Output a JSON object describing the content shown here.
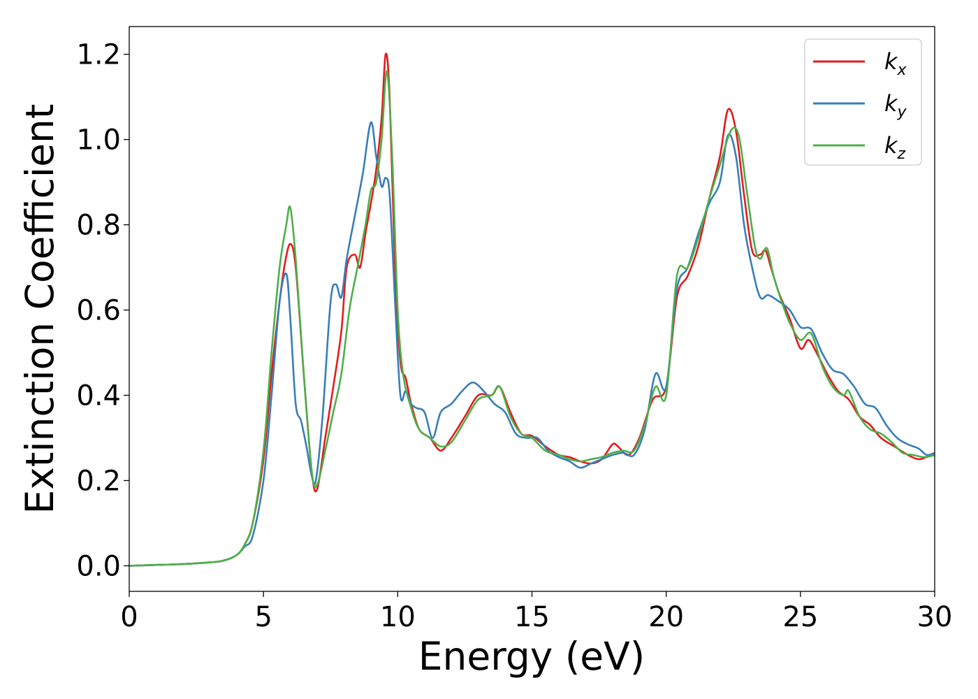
{
  "chart_data": {
    "type": "line",
    "title": "",
    "xlabel": "Energy (eV)",
    "ylabel": "Extinction Coefficient",
    "xlim": [
      0,
      30
    ],
    "ylim": [
      -0.06,
      1.265
    ],
    "xticks": [
      0,
      5,
      10,
      15,
      20,
      25,
      30
    ],
    "xtick_labels": [
      "0",
      "5",
      "10",
      "15",
      "20",
      "25",
      "30"
    ],
    "yticks": [
      0.0,
      0.2,
      0.4,
      0.6,
      0.8,
      1.0,
      1.2
    ],
    "ytick_labels": [
      "0.0",
      "0.2",
      "0.4",
      "0.6",
      "0.8",
      "1.0",
      "1.2"
    ],
    "grid": false,
    "legend_position": "top-right",
    "series": [
      {
        "name": "k_x",
        "label_main": "k",
        "label_sub": "x",
        "color": "#e41a1c",
        "x": [
          0,
          1,
          2,
          3,
          3.5,
          4,
          4.3,
          4.6,
          5,
          5.3,
          5.6,
          5.8,
          6.0,
          6.2,
          6.5,
          6.8,
          7.0,
          7.3,
          7.6,
          7.9,
          8.1,
          8.4,
          8.6,
          8.8,
          9.0,
          9.2,
          9.4,
          9.55,
          9.7,
          9.9,
          10.1,
          10.3,
          10.5,
          10.8,
          11.2,
          11.6,
          12.0,
          12.5,
          13.0,
          13.5,
          13.8,
          14.2,
          14.6,
          15.0,
          15.5,
          16.0,
          16.4,
          16.8,
          17.2,
          17.6,
          18.0,
          18.2,
          18.6,
          19.0,
          19.5,
          20.0,
          20.4,
          20.8,
          21.2,
          21.6,
          22.0,
          22.3,
          22.6,
          22.9,
          23.2,
          23.5,
          23.7,
          23.9,
          24.2,
          24.6,
          25.0,
          25.3,
          25.6,
          26.0,
          26.4,
          26.8,
          27.2,
          27.6,
          28.0,
          28.5,
          29.0,
          29.4,
          29.7,
          30.0
        ],
        "y": [
          0.0,
          0.002,
          0.004,
          0.008,
          0.012,
          0.025,
          0.05,
          0.1,
          0.25,
          0.45,
          0.62,
          0.71,
          0.755,
          0.7,
          0.45,
          0.22,
          0.18,
          0.3,
          0.42,
          0.55,
          0.7,
          0.73,
          0.7,
          0.78,
          0.85,
          0.93,
          1.05,
          1.2,
          1.1,
          0.7,
          0.48,
          0.44,
          0.38,
          0.32,
          0.3,
          0.27,
          0.3,
          0.35,
          0.4,
          0.4,
          0.42,
          0.36,
          0.31,
          0.305,
          0.28,
          0.26,
          0.255,
          0.245,
          0.24,
          0.25,
          0.285,
          0.28,
          0.26,
          0.3,
          0.39,
          0.42,
          0.63,
          0.68,
          0.75,
          0.86,
          0.96,
          1.07,
          1.02,
          0.87,
          0.74,
          0.73,
          0.74,
          0.7,
          0.64,
          0.58,
          0.51,
          0.53,
          0.5,
          0.45,
          0.41,
          0.39,
          0.35,
          0.33,
          0.3,
          0.28,
          0.26,
          0.25,
          0.255,
          0.26
        ]
      },
      {
        "name": "k_y",
        "label_main": "k",
        "label_sub": "y",
        "color": "#377eb8",
        "x": [
          0,
          1,
          2,
          3,
          3.5,
          4,
          4.3,
          4.6,
          5,
          5.3,
          5.6,
          5.85,
          6.0,
          6.2,
          6.4,
          6.6,
          6.8,
          6.95,
          7.2,
          7.5,
          7.7,
          7.9,
          8.1,
          8.4,
          8.7,
          9.0,
          9.2,
          9.4,
          9.55,
          9.7,
          9.9,
          10.1,
          10.3,
          10.5,
          10.7,
          11.0,
          11.3,
          11.6,
          12.0,
          12.4,
          12.8,
          13.2,
          13.6,
          14.0,
          14.4,
          14.8,
          15.2,
          15.6,
          16.0,
          16.4,
          16.8,
          17.2,
          17.6,
          18.0,
          18.4,
          18.8,
          19.2,
          19.6,
          20.0,
          20.4,
          20.8,
          21.2,
          21.6,
          22.0,
          22.3,
          22.6,
          22.9,
          23.2,
          23.5,
          23.8,
          24.2,
          24.6,
          25.0,
          25.4,
          25.8,
          26.2,
          26.6,
          27.0,
          27.4,
          27.8,
          28.2,
          28.6,
          29.0,
          29.4,
          29.7,
          30.0
        ],
        "y": [
          0.0,
          0.002,
          0.004,
          0.008,
          0.012,
          0.025,
          0.045,
          0.07,
          0.2,
          0.4,
          0.62,
          0.685,
          0.58,
          0.38,
          0.34,
          0.28,
          0.21,
          0.2,
          0.35,
          0.62,
          0.66,
          0.63,
          0.72,
          0.82,
          0.92,
          1.04,
          0.96,
          0.89,
          0.91,
          0.87,
          0.62,
          0.4,
          0.41,
          0.38,
          0.37,
          0.36,
          0.3,
          0.36,
          0.38,
          0.41,
          0.43,
          0.41,
          0.38,
          0.36,
          0.31,
          0.3,
          0.3,
          0.27,
          0.255,
          0.245,
          0.23,
          0.24,
          0.25,
          0.26,
          0.265,
          0.26,
          0.32,
          0.45,
          0.42,
          0.65,
          0.7,
          0.78,
          0.85,
          0.9,
          1.01,
          0.96,
          0.8,
          0.7,
          0.63,
          0.635,
          0.62,
          0.6,
          0.56,
          0.555,
          0.5,
          0.46,
          0.45,
          0.42,
          0.38,
          0.37,
          0.33,
          0.3,
          0.285,
          0.275,
          0.26,
          0.265
        ]
      },
      {
        "name": "k_z",
        "label_main": "k",
        "label_sub": "z",
        "color": "#4daf4a",
        "x": [
          0,
          1,
          2,
          3,
          3.5,
          4,
          4.3,
          4.6,
          5,
          5.3,
          5.6,
          5.85,
          6.0,
          6.2,
          6.5,
          6.8,
          7.0,
          7.3,
          7.6,
          7.9,
          8.2,
          8.5,
          8.8,
          9.0,
          9.2,
          9.4,
          9.6,
          9.8,
          10.0,
          10.2,
          10.5,
          10.8,
          11.2,
          11.6,
          12.0,
          12.5,
          13.0,
          13.5,
          13.8,
          14.2,
          14.6,
          15.0,
          15.5,
          16.0,
          16.4,
          16.8,
          17.2,
          17.6,
          18.0,
          18.4,
          18.8,
          19.2,
          19.6,
          20.0,
          20.4,
          20.8,
          21.2,
          21.6,
          22.0,
          22.4,
          22.7,
          23.0,
          23.3,
          23.5,
          23.75,
          24.0,
          24.3,
          24.6,
          25.0,
          25.4,
          25.8,
          26.2,
          26.6,
          26.8,
          27.2,
          27.6,
          28.0,
          28.4,
          28.8,
          29.2,
          29.6,
          30.0
        ],
        "y": [
          0.0,
          0.002,
          0.004,
          0.008,
          0.012,
          0.025,
          0.05,
          0.1,
          0.27,
          0.5,
          0.7,
          0.8,
          0.84,
          0.72,
          0.45,
          0.22,
          0.19,
          0.27,
          0.36,
          0.45,
          0.6,
          0.7,
          0.8,
          0.88,
          0.9,
          1.0,
          1.16,
          0.95,
          0.6,
          0.45,
          0.37,
          0.32,
          0.3,
          0.28,
          0.29,
          0.34,
          0.39,
          0.4,
          0.42,
          0.35,
          0.31,
          0.3,
          0.27,
          0.26,
          0.25,
          0.245,
          0.25,
          0.255,
          0.265,
          0.27,
          0.27,
          0.33,
          0.42,
          0.4,
          0.68,
          0.7,
          0.77,
          0.86,
          0.94,
          1.02,
          1.01,
          0.88,
          0.75,
          0.72,
          0.745,
          0.68,
          0.62,
          0.57,
          0.53,
          0.545,
          0.47,
          0.42,
          0.4,
          0.41,
          0.35,
          0.32,
          0.31,
          0.29,
          0.265,
          0.26,
          0.255,
          0.26
        ]
      }
    ]
  }
}
